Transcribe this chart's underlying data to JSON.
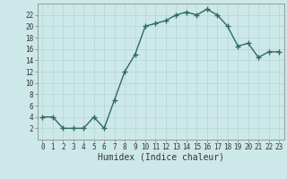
{
  "x": [
    0,
    1,
    2,
    3,
    4,
    5,
    6,
    7,
    8,
    9,
    10,
    11,
    12,
    13,
    14,
    15,
    16,
    17,
    18,
    19,
    20,
    21,
    22,
    23
  ],
  "y": [
    4,
    4,
    2,
    2,
    2,
    4,
    2,
    7,
    12,
    15,
    20,
    20.5,
    21,
    22,
    22.5,
    22,
    23,
    22,
    20,
    16.5,
    17,
    14.5,
    15.5,
    15.5
  ],
  "line_color": "#2d6b5e",
  "marker_color": "#2d6b5e",
  "bg_color": "#cde8e8",
  "grid_color": "#b8d8d8",
  "axis_color": "#333333",
  "xlabel": "Humidex (Indice chaleur)",
  "xlim": [
    -0.5,
    23.5
  ],
  "ylim": [
    0,
    24
  ],
  "yticks": [
    2,
    4,
    6,
    8,
    10,
    12,
    14,
    16,
    18,
    20,
    22
  ],
  "xticks": [
    0,
    1,
    2,
    3,
    4,
    5,
    6,
    7,
    8,
    9,
    10,
    11,
    12,
    13,
    14,
    15,
    16,
    17,
    18,
    19,
    20,
    21,
    22,
    23
  ],
  "tick_fontsize": 5.5,
  "label_fontsize": 7.0,
  "linewidth": 1.0,
  "markersize": 2.5,
  "fig_width": 3.2,
  "fig_height": 2.0,
  "dpi": 100
}
